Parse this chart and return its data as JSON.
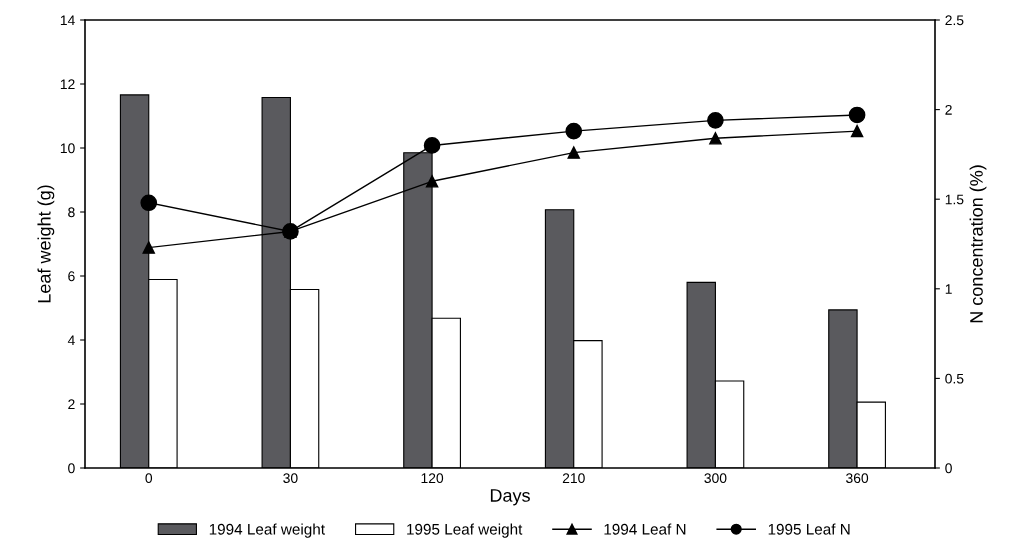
{
  "chart_data": {
    "type": "bar",
    "xlabel": "Days",
    "ylabel": "Leaf weight (g)",
    "y2label": "N concentration (%)",
    "categories": [
      "0",
      "30",
      "120",
      "210",
      "300",
      "360"
    ],
    "series": [
      {
        "name": "1994 Leaf weight",
        "color": "#5a5a5e",
        "values": [
          11.66,
          11.58,
          9.85,
          8.07,
          5.8,
          4.94
        ]
      },
      {
        "name": "1995 Leaf weight",
        "color": "#ffffff",
        "values": [
          5.89,
          5.58,
          4.68,
          3.98,
          2.72,
          2.06
        ]
      },
      {
        "name": "1994 Leaf N",
        "type": "line",
        "axis": "y2",
        "marker": "triangle",
        "color": "#000000",
        "values": [
          1.23,
          1.32,
          1.6,
          1.76,
          1.84,
          1.88
        ]
      },
      {
        "name": "1995 Leaf N",
        "type": "line",
        "axis": "y2",
        "marker": "circle",
        "color": "#000000",
        "values": [
          1.48,
          1.32,
          1.8,
          1.88,
          1.94,
          1.97
        ]
      }
    ],
    "ylim": [
      0,
      14
    ],
    "yticks": [
      0,
      2,
      4,
      6,
      8,
      10,
      12,
      14
    ],
    "y2lim": [
      0,
      2.5
    ],
    "y2ticks": [
      0,
      0.5,
      1,
      1.5,
      2,
      2.5
    ],
    "grid": false,
    "legend": "bottom"
  }
}
